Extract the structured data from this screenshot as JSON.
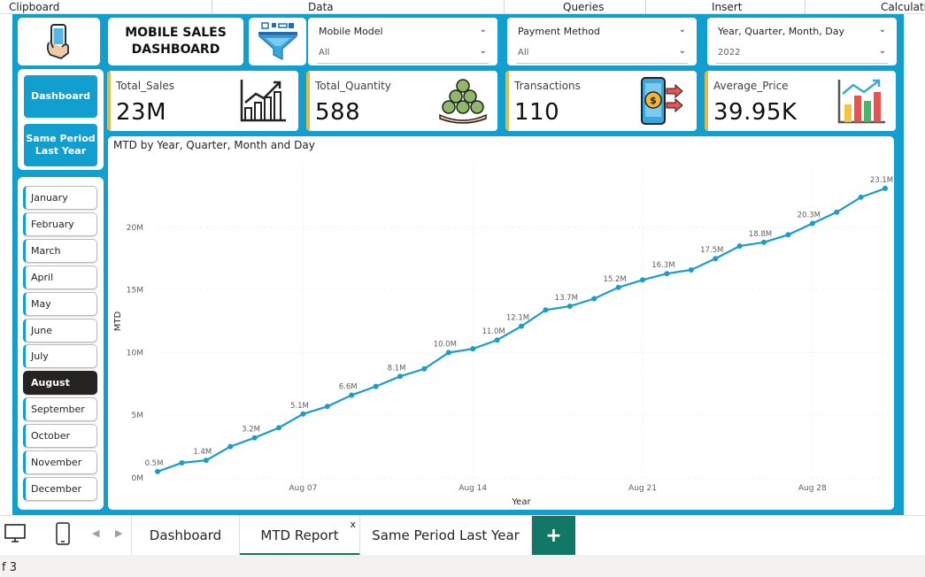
{
  "ribbon": {
    "groups": [
      "Clipboard",
      "Data",
      "Queries",
      "Insert",
      "Calculatio"
    ]
  },
  "header": {
    "title": "MOBILE SALES DASHBOARD"
  },
  "slicers": [
    {
      "label": "Mobile Model",
      "value": "All"
    },
    {
      "label": "Payment Method",
      "value": "All"
    },
    {
      "label": "Year, Quarter, Month, Day",
      "value": "2022"
    }
  ],
  "nav": {
    "dashboard_label": "Dashboard",
    "same_period_label": "Same Period Last Year"
  },
  "kpis": [
    {
      "label": "Total_Sales",
      "value": "23M"
    },
    {
      "label": "Total_Quantity",
      "value": "588"
    },
    {
      "label": "Transactions",
      "value": "110"
    },
    {
      "label": "Average_Price",
      "value": "39.95K"
    }
  ],
  "months": {
    "items": [
      "January",
      "February",
      "March",
      "April",
      "May",
      "June",
      "July",
      "August",
      "September",
      "October",
      "November",
      "December"
    ],
    "selected": "August"
  },
  "chart_data": {
    "type": "line",
    "title": "MTD by Year, Quarter, Month and Day",
    "xlabel": "Year",
    "ylabel": "MTD",
    "x_ticks": [
      "Aug 07",
      "Aug 14",
      "Aug 21",
      "Aug 28"
    ],
    "x_tick_days": [
      7,
      14,
      21,
      28
    ],
    "y_ticks": [
      "0M",
      "5M",
      "10M",
      "15M",
      "20M"
    ],
    "ylim": [
      0,
      25
    ],
    "grid": true,
    "color": "#1a9ec9",
    "x": [
      1,
      2,
      3,
      4,
      5,
      6,
      7,
      8,
      9,
      10,
      11,
      12,
      13,
      14,
      15,
      16,
      17,
      18,
      19,
      20,
      21,
      22,
      23,
      24,
      25,
      26,
      27,
      28,
      29,
      30,
      31
    ],
    "values": [
      0.5,
      1.2,
      1.4,
      2.5,
      3.2,
      4.0,
      5.1,
      5.7,
      6.6,
      7.3,
      8.1,
      8.7,
      10.0,
      10.3,
      11.0,
      12.1,
      13.4,
      13.7,
      14.3,
      15.2,
      15.8,
      16.3,
      16.6,
      17.5,
      18.5,
      18.8,
      19.4,
      20.3,
      21.2,
      22.4,
      23.1
    ],
    "labels": {
      "1": "0.5M",
      "3": "1.4M",
      "5": "3.2M",
      "7": "5.1M",
      "9": "6.6M",
      "11": "8.1M",
      "13": "10.0M",
      "15": "11.0M",
      "16": "12.1M",
      "18": "13.7M",
      "20": "15.2M",
      "22": "16.3M",
      "24": "17.5M",
      "26": "18.8M",
      "28": "20.3M",
      "31": "23.1M"
    }
  },
  "tabs": {
    "pages": [
      {
        "label": "Dashboard"
      },
      {
        "label": "MTD Report"
      },
      {
        "label": "Same Period Last Year"
      }
    ],
    "active": "MTD Report",
    "close_glyph": "x",
    "add_glyph": "+"
  },
  "status": {
    "page_text": "f 3"
  }
}
